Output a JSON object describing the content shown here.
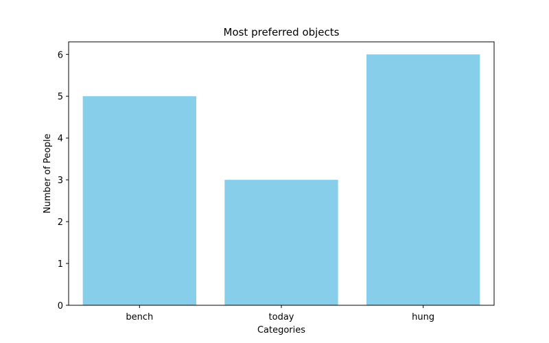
{
  "chart_data": {
    "type": "bar",
    "title": "Most preferred objects",
    "xlabel": "Categories",
    "ylabel": "Number of People",
    "categories": [
      "bench",
      "today",
      "hung"
    ],
    "values": [
      5,
      3,
      6
    ],
    "ylim": [
      0,
      6.3
    ],
    "yticks": [
      0,
      1,
      2,
      3,
      4,
      5,
      6
    ],
    "bar_color": "#87CEEB",
    "grid": false,
    "legend": "none"
  }
}
